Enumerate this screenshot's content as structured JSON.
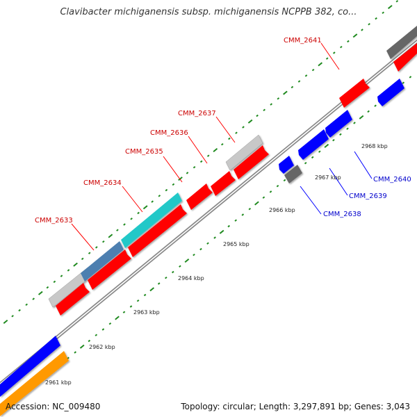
{
  "title": "Clavibacter michiganensis subsp. michiganensis NCPPB 382, co...",
  "accession": "Accession: NC_009480",
  "summary": "Topology: circular; Length: 3,297,891 bp; Genes: 3,043",
  "colors": {
    "backbone": "#888888",
    "tick": "#1f8a1f",
    "red": "#ff0000",
    "blue": "#0000ff",
    "cyan": "#20c8c8",
    "steelblue": "#4d7fb0",
    "lightgray": "#c8c8c8",
    "darkgray": "#666666",
    "orange": "#ff9900",
    "label_red": "#cc0000",
    "label_blue": "#0000cc",
    "kbp_text": "#222222"
  },
  "kbp_labels": [
    "2961 kbp",
    "2962 kbp",
    "2963 kbp",
    "2964 kbp",
    "2965 kbp",
    "2966 kbp",
    "2967 kbp",
    "2968 kbp"
  ],
  "genes": [
    {
      "name": "CMM_2633",
      "strand": "forward",
      "color": "red"
    },
    {
      "name": "CMM_2634",
      "strand": "forward",
      "color": "red"
    },
    {
      "name": "CMM_2635",
      "strand": "forward",
      "color": "red"
    },
    {
      "name": "CMM_2636",
      "strand": "forward",
      "color": "red"
    },
    {
      "name": "CMM_2637",
      "strand": "forward",
      "color": "red"
    },
    {
      "name": "CMM_2638",
      "strand": "reverse",
      "color": "blue"
    },
    {
      "name": "CMM_2639",
      "strand": "reverse",
      "color": "blue"
    },
    {
      "name": "CMM_2640",
      "strand": "reverse",
      "color": "blue"
    },
    {
      "name": "CMM_2641",
      "strand": "forward",
      "color": "red"
    }
  ]
}
